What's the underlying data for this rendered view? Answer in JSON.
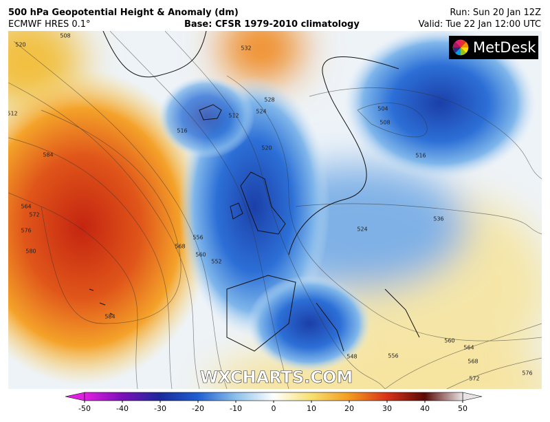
{
  "header": {
    "title": "500 hPa Geopotential Height & Anomaly (dm)",
    "model": "ECMWF HRES 0.1°",
    "base": "Base: CFSR 1979-2010 climatology",
    "run": "Run: Sun 20 Jan 12Z",
    "valid": "Valid: Tue 22 Jan 12:00 UTC"
  },
  "logo": "MetDesk",
  "watermark": "WXCHARTS.COM",
  "contour_labels": [
    520,
    508,
    512,
    584,
    564,
    572,
    576,
    580,
    584,
    568,
    556,
    560,
    552,
    516,
    512,
    524,
    528,
    520,
    532,
    504,
    508,
    516,
    524,
    536,
    560,
    564,
    568,
    572,
    576,
    556,
    548
  ],
  "colorbar": {
    "lim": [
      -50,
      50
    ],
    "ticks": [
      -50,
      -40,
      -30,
      -20,
      -10,
      0,
      10,
      20,
      30,
      40,
      50
    ],
    "colors": [
      "#e020e0",
      "#7a10b8",
      "#1a2a9a",
      "#1f5fd0",
      "#8cc0ea",
      "#ffffff",
      "#f7e070",
      "#f39a20",
      "#d83218",
      "#5a0a08",
      "#e8e4e4"
    ]
  }
}
